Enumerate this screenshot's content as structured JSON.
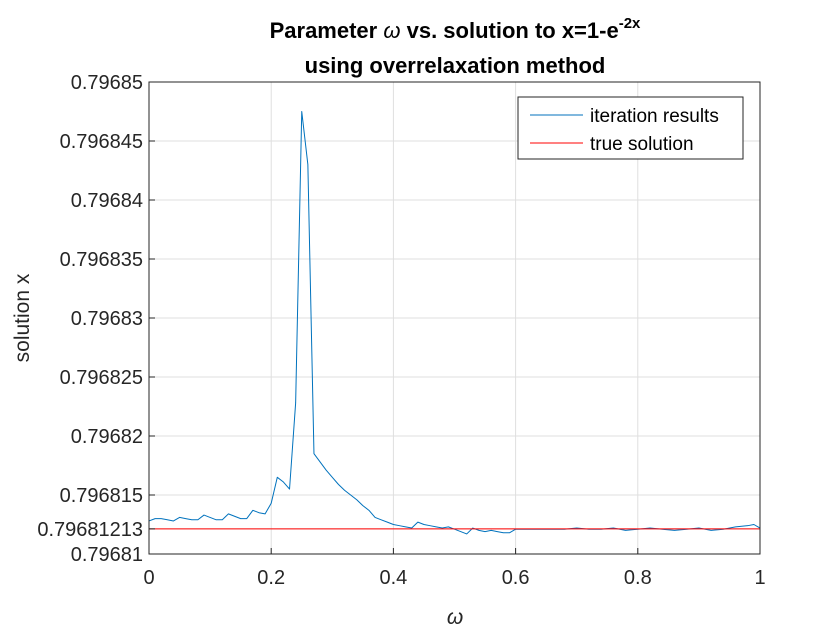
{
  "title": {
    "line1_prefix": "Parameter ",
    "line1_symbol": "ω",
    "line1_mid": " vs. solution to x=1-e",
    "line1_sup": "-2x",
    "line2": "using overrelaxation method"
  },
  "chart_data": {
    "type": "line",
    "xlabel": "ω",
    "ylabel": "solution x",
    "xlim": [
      0,
      1
    ],
    "ylim": [
      0.79681,
      0.79685
    ],
    "xticks": [
      0,
      0.2,
      0.4,
      0.6,
      0.8,
      1
    ],
    "xtick_labels": [
      "0",
      "0.2",
      "0.4",
      "0.6",
      "0.8",
      "1"
    ],
    "yticks": [
      0.79681,
      0.79681213,
      0.796815,
      0.79682,
      0.796825,
      0.79683,
      0.796835,
      0.79684,
      0.796845,
      0.79685
    ],
    "ytick_labels": [
      "0.79681",
      "0.79681213",
      "0.796815",
      "0.79682",
      "0.796825",
      "0.79683",
      "0.796835",
      "0.79684",
      "0.796845",
      "0.79685"
    ],
    "grid": true,
    "legend_position": "top-right",
    "series": [
      {
        "name": "iteration results",
        "color": "#0072BD",
        "x": [
          0,
          0.01,
          0.02,
          0.03,
          0.04,
          0.05,
          0.06,
          0.07,
          0.08,
          0.09,
          0.1,
          0.11,
          0.12,
          0.13,
          0.14,
          0.15,
          0.16,
          0.17,
          0.18,
          0.19,
          0.2,
          0.21,
          0.22,
          0.23,
          0.24,
          0.25,
          0.26,
          0.27,
          0.28,
          0.29,
          0.3,
          0.31,
          0.32,
          0.33,
          0.34,
          0.35,
          0.36,
          0.37,
          0.38,
          0.39,
          0.4,
          0.41,
          0.42,
          0.43,
          0.44,
          0.45,
          0.46,
          0.47,
          0.48,
          0.49,
          0.5,
          0.51,
          0.52,
          0.53,
          0.54,
          0.55,
          0.56,
          0.57,
          0.58,
          0.59,
          0.6,
          0.62,
          0.64,
          0.66,
          0.68,
          0.7,
          0.72,
          0.74,
          0.76,
          0.78,
          0.8,
          0.82,
          0.84,
          0.86,
          0.88,
          0.9,
          0.92,
          0.94,
          0.96,
          0.98,
          0.99,
          1.0
        ],
        "y": [
          0.7968128,
          0.796813,
          0.796813,
          0.7968129,
          0.7968128,
          0.7968131,
          0.796813,
          0.7968129,
          0.7968129,
          0.7968133,
          0.7968131,
          0.7968129,
          0.7968129,
          0.7968134,
          0.7968132,
          0.796813,
          0.796813,
          0.7968137,
          0.7968135,
          0.7968134,
          0.7968143,
          0.7968165,
          0.7968161,
          0.7968155,
          0.7968228,
          0.7968475,
          0.796843,
          0.7968185,
          0.7968178,
          0.7968171,
          0.7968165,
          0.7968159,
          0.7968154,
          0.796815,
          0.7968146,
          0.7968141,
          0.7968137,
          0.7968131,
          0.7968129,
          0.7968127,
          0.7968125,
          0.7968124,
          0.7968123,
          0.7968122,
          0.7968127,
          0.7968125,
          0.7968124,
          0.7968123,
          0.7968122,
          0.7968123,
          0.7968121,
          0.7968119,
          0.7968117,
          0.7968122,
          0.796812,
          0.7968119,
          0.796812,
          0.7968119,
          0.7968118,
          0.7968118,
          0.7968121,
          0.7968121,
          0.7968121,
          0.7968121,
          0.7968121,
          0.7968122,
          0.7968121,
          0.7968121,
          0.7968122,
          0.796812,
          0.7968121,
          0.7968122,
          0.7968121,
          0.796812,
          0.7968121,
          0.7968122,
          0.796812,
          0.7968121,
          0.7968123,
          0.7968124,
          0.7968125,
          0.7968122
        ]
      },
      {
        "name": "true solution",
        "color": "#FF0000",
        "x": [
          0,
          1
        ],
        "y": [
          0.79681213,
          0.79681213
        ]
      }
    ]
  }
}
